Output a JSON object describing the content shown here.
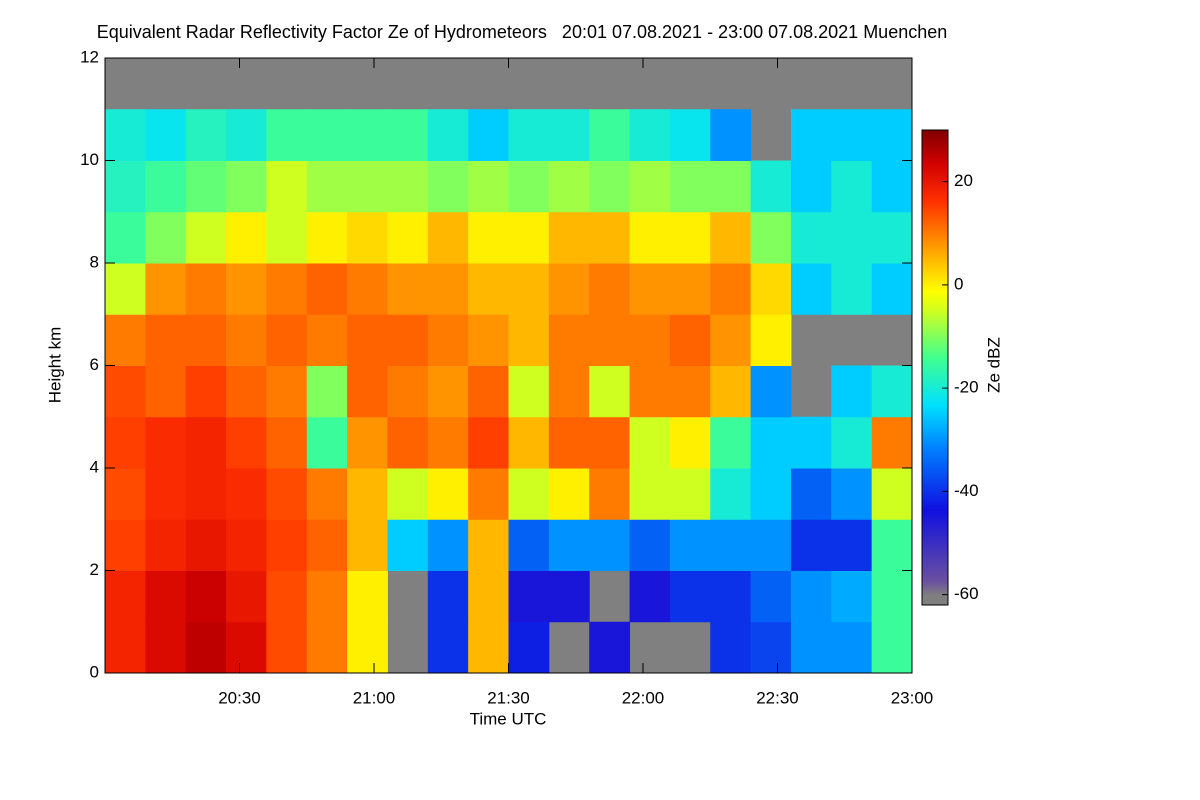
{
  "chart_data": {
    "type": "heatmap",
    "title": "Equivalent Radar Reflectivity Factor Ze of Hydrometeors   20:01 07.08.2021 - 23:00 07.08.2021 Muenchen",
    "xlabel": "Time UTC",
    "ylabel": "Height km",
    "colorbar_label": "Ze dBZ",
    "xlim": [
      20,
      23
    ],
    "xticks": [
      {
        "value": 20.5,
        "label": "20:30"
      },
      {
        "value": 21,
        "label": "21:00"
      },
      {
        "value": 21.5,
        "label": "21:30"
      },
      {
        "value": 22,
        "label": "22:00"
      },
      {
        "value": 22.5,
        "label": "22:30"
      },
      {
        "value": 23,
        "label": "23:00"
      }
    ],
    "ylim": [
      0,
      12
    ],
    "yticks": [
      0,
      2,
      4,
      6,
      8,
      10,
      12
    ],
    "zlim": [
      -62,
      30
    ],
    "zticks": [
      -60,
      -40,
      -20,
      0,
      20
    ],
    "x": [
      20.0,
      20.15,
      20.3,
      20.45,
      20.6,
      20.75,
      20.9,
      21.05,
      21.2,
      21.35,
      21.5,
      21.65,
      21.8,
      21.95,
      22.1,
      22.25,
      22.4,
      22.55,
      22.7,
      22.85,
      23.0
    ],
    "y": [
      0,
      1,
      2,
      3,
      4,
      5,
      6,
      7,
      8,
      9,
      10,
      11,
      12
    ],
    "z": [
      [
        18,
        22,
        25,
        22,
        14,
        10,
        0,
        null,
        -40,
        5,
        -42,
        null,
        -45,
        null,
        null,
        -40,
        -38,
        -30,
        -30,
        -15
      ],
      [
        18,
        22,
        24,
        20,
        14,
        10,
        0,
        null,
        -40,
        5,
        -45,
        -45,
        null,
        -45,
        -40,
        -40,
        -35,
        -30,
        -28,
        -15
      ],
      [
        15,
        18,
        20,
        18,
        15,
        12,
        5,
        -25,
        -30,
        5,
        -35,
        -30,
        -30,
        -35,
        -30,
        -30,
        -30,
        -40,
        -40,
        -15
      ],
      [
        14,
        17,
        18,
        17,
        14,
        10,
        5,
        -5,
        0,
        10,
        -5,
        0,
        10,
        -5,
        -5,
        -20,
        -25,
        -35,
        -30,
        -5
      ],
      [
        15,
        17,
        18,
        15,
        12,
        -15,
        8,
        12,
        10,
        15,
        5,
        12,
        12,
        -5,
        0,
        -15,
        -25,
        -25,
        -20,
        10
      ],
      [
        14,
        12,
        15,
        12,
        10,
        -10,
        12,
        10,
        8,
        12,
        -5,
        10,
        -5,
        10,
        10,
        5,
        -30,
        null,
        -25,
        -20
      ],
      [
        10,
        12,
        12,
        10,
        12,
        10,
        12,
        12,
        10,
        8,
        5,
        10,
        10,
        10,
        12,
        8,
        0,
        null,
        null,
        null
      ],
      [
        -5,
        8,
        10,
        8,
        10,
        12,
        10,
        8,
        8,
        5,
        5,
        8,
        10,
        8,
        8,
        10,
        2,
        -25,
        -20,
        -25
      ],
      [
        -15,
        -10,
        -5,
        0,
        -5,
        0,
        2,
        0,
        5,
        0,
        0,
        5,
        5,
        0,
        0,
        5,
        -10,
        -20,
        -20,
        -20
      ],
      [
        -18,
        -15,
        -12,
        -10,
        -5,
        -8,
        -8,
        -8,
        -10,
        -8,
        -10,
        -8,
        -10,
        -8,
        -10,
        -10,
        -20,
        -25,
        -20,
        -25
      ],
      [
        -20,
        -22,
        -18,
        -20,
        -15,
        -15,
        -15,
        -15,
        -20,
        -25,
        -20,
        -20,
        -15,
        -20,
        -22,
        -30,
        null,
        -25,
        -25,
        -25
      ],
      [
        null,
        null,
        null,
        null,
        null,
        null,
        null,
        null,
        null,
        null,
        null,
        null,
        null,
        null,
        null,
        null,
        null,
        null,
        null,
        null
      ]
    ]
  }
}
